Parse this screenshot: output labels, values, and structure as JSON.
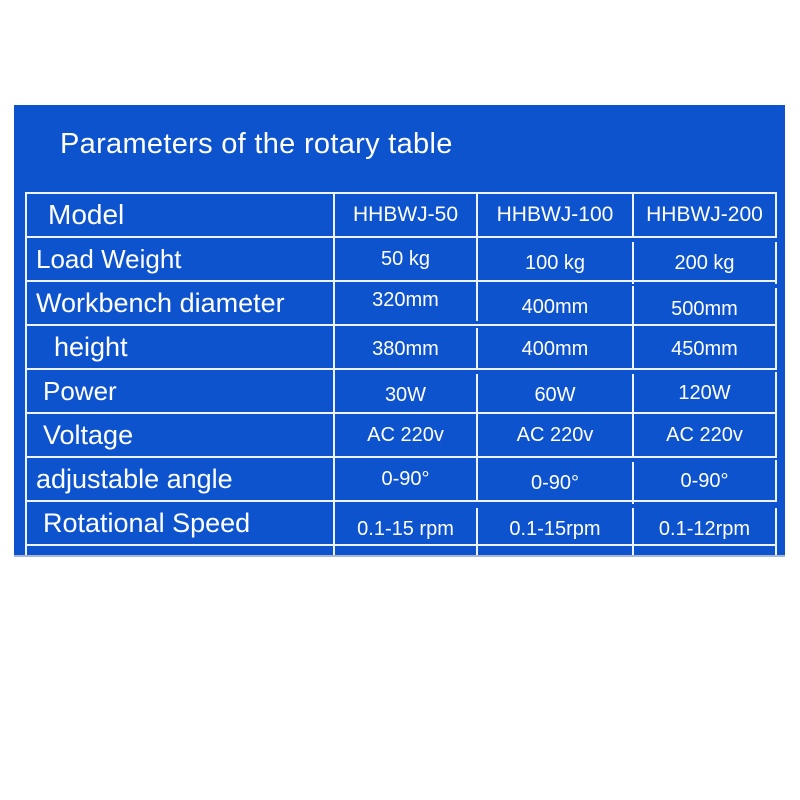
{
  "title": "Parameters of the rotary table",
  "colors": {
    "panel_blue": "#0d53cd",
    "table_border": "#edf2fb",
    "text_white": "#ffffff",
    "page_bg": "#ffffff"
  },
  "table": {
    "header": {
      "label": "Model",
      "columns": [
        "HHBWJ-50",
        "HHBWJ-100",
        "HHBWJ-200"
      ]
    },
    "rows": [
      {
        "label": "Load Weight",
        "values": [
          "50 kg",
          "100 kg",
          "200 kg"
        ]
      },
      {
        "label": "Workbench diameter",
        "values": [
          "320mm",
          "400mm",
          "500mm"
        ]
      },
      {
        "label": "height",
        "values": [
          "380mm",
          "400mm",
          "450mm"
        ]
      },
      {
        "label": "Power",
        "values": [
          "30W",
          "60W",
          "120W"
        ]
      },
      {
        "label": "Voltage",
        "values": [
          "AC 220v",
          "AC 220v",
          "AC 220v"
        ]
      },
      {
        "label": "adjustable angle",
        "values": [
          "0-90°",
          "0-90°",
          "0-90°"
        ]
      },
      {
        "label": "Rotational Speed",
        "values": [
          "0.1-15 rpm",
          "0.1-15rpm",
          "0.1-12rpm"
        ]
      }
    ]
  }
}
